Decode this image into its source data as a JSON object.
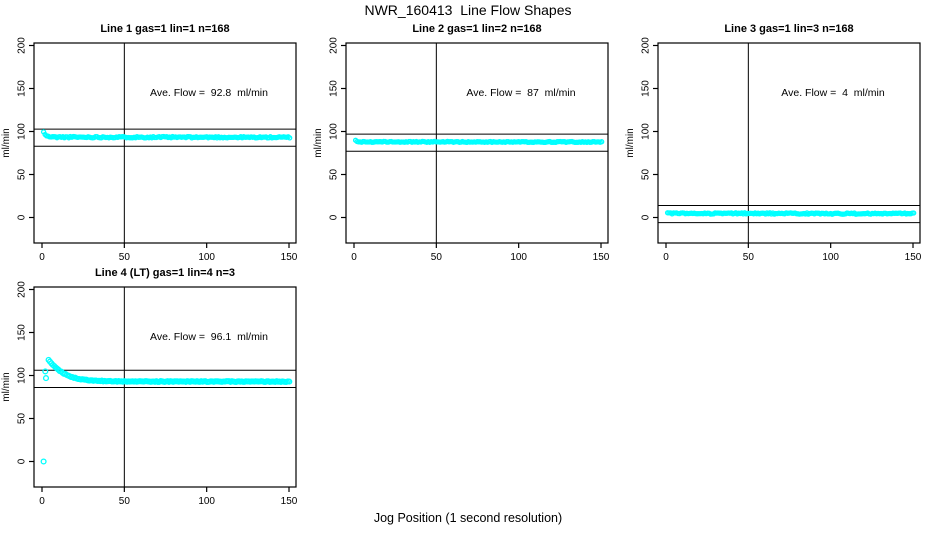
{
  "page": {
    "title": "NWR_160413  Line Flow Shapes",
    "xlabel": "Jog Position (1 second resolution)",
    "background": "#ffffff",
    "foreground": "#000000",
    "point_color": "#00ffff"
  },
  "chart_data": [
    {
      "type": "scatter",
      "title": "Line 1 gas=1 lin=1 n=168",
      "annotation": "Ave. Flow =  92.8  ml/min",
      "ave_flow_ml_min": 92.8,
      "n": 168,
      "ylabel": "ml/min",
      "xticks": [
        0,
        50,
        100,
        150
      ],
      "yticks": [
        0,
        50,
        100,
        150,
        200
      ],
      "xlim": [
        -5,
        154
      ],
      "ylim": [
        -27,
        203
      ],
      "vline_x": 50,
      "hlines": [
        102.8,
        82.8
      ],
      "outliers": [
        [
          1,
          99.5
        ]
      ],
      "series": {
        "x_start": 1.9,
        "x_end": 151,
        "step": 0.9,
        "noise": 0.8,
        "seed": 11,
        "anchors": [
          [
            1.9,
            96.3
          ],
          [
            3.5,
            94.2
          ],
          [
            7,
            93.5
          ],
          [
            151,
            93.2
          ]
        ]
      }
    },
    {
      "type": "scatter",
      "title": "Line 2 gas=1 lin=2 n=168",
      "annotation": "Ave. Flow =  87  ml/min",
      "ave_flow_ml_min": 87,
      "n": 168,
      "ylabel": "ml/min",
      "xticks": [
        0,
        50,
        100,
        150
      ],
      "yticks": [
        0,
        50,
        100,
        150,
        200
      ],
      "xlim": [
        -5,
        154
      ],
      "ylim": [
        -27,
        203
      ],
      "vline_x": 50,
      "hlines": [
        97,
        77
      ],
      "outliers": [
        [
          1,
          89.8
        ]
      ],
      "series": {
        "x_start": 1.9,
        "x_end": 151,
        "step": 0.9,
        "noise": 0.55,
        "seed": 22,
        "anchors": [
          [
            1.9,
            88.6
          ],
          [
            4,
            88
          ],
          [
            151,
            87.8
          ]
        ]
      }
    },
    {
      "type": "scatter",
      "title": "Line 3 gas=1 lin=3 n=168",
      "annotation": "Ave. Flow =  4  ml/min",
      "ave_flow_ml_min": 4,
      "n": 168,
      "ylabel": "ml/min",
      "xticks": [
        0,
        50,
        100,
        150
      ],
      "yticks": [
        0,
        50,
        100,
        150,
        200
      ],
      "xlim": [
        -5,
        154
      ],
      "ylim": [
        -27,
        203
      ],
      "vline_x": 50,
      "hlines": [
        14,
        -6
      ],
      "outliers": [],
      "series": {
        "x_start": 1,
        "x_end": 151,
        "step": 0.9,
        "noise": 0.75,
        "seed": 33,
        "anchors": [
          [
            1,
            4.8
          ],
          [
            151,
            4.5
          ]
        ]
      }
    },
    {
      "type": "scatter",
      "title": "Line 4 (LT) gas=1 lin=4 n=3",
      "annotation": "Ave. Flow =  96.1  ml/min",
      "ave_flow_ml_min": 96.1,
      "n": 3,
      "ylabel": "ml/min",
      "xticks": [
        0,
        50,
        100,
        150
      ],
      "yticks": [
        0,
        50,
        100,
        150,
        200
      ],
      "xlim": [
        -5,
        154
      ],
      "ylim": [
        -27,
        203
      ],
      "vline_x": 50,
      "hlines": [
        106.1,
        86.1
      ],
      "outliers": [
        [
          1,
          0
        ],
        [
          2,
          104.8
        ],
        [
          2.4,
          97
        ]
      ],
      "series": {
        "x_start": 4,
        "x_end": 151,
        "step": 0.85,
        "noise": 0.45,
        "seed": 44,
        "anchors": [
          [
            4,
            118
          ],
          [
            6,
            113.5
          ],
          [
            8,
            109.8
          ],
          [
            10,
            106.6
          ],
          [
            12,
            103.9
          ],
          [
            14,
            101.7
          ],
          [
            16,
            99.9
          ],
          [
            18,
            98.4
          ],
          [
            20,
            97.2
          ],
          [
            23,
            95.9
          ],
          [
            26,
            95
          ],
          [
            30,
            94.2
          ],
          [
            35,
            93.7
          ],
          [
            40,
            93.4
          ],
          [
            50,
            93.1
          ],
          [
            70,
            93
          ],
          [
            151,
            92.9
          ]
        ]
      }
    }
  ]
}
